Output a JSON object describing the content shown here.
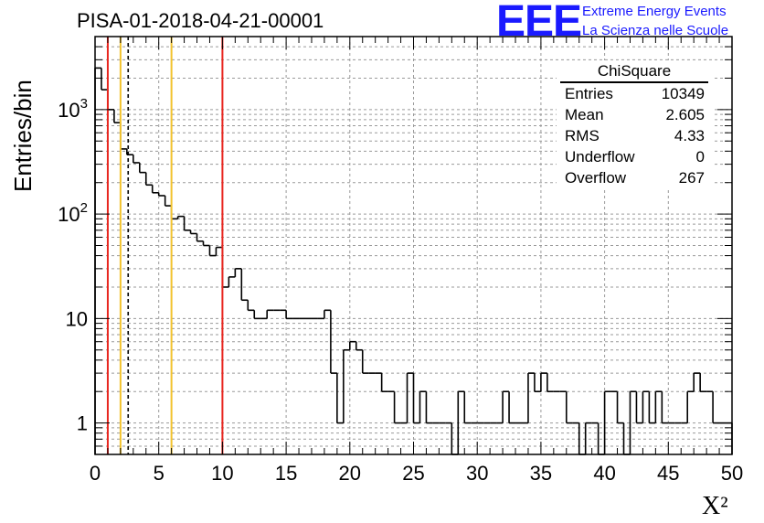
{
  "title": "PISA-01-2018-04-21-00001",
  "logo": {
    "mark": "EEE",
    "line1": "Extreme Energy Events",
    "line2": "La Scienza nelle Scuole",
    "color": "#1a1aff"
  },
  "stats": {
    "title": "ChiSquare",
    "rows": [
      {
        "label": "Entries",
        "value": "10349"
      },
      {
        "label": "Mean",
        "value": "2.605"
      },
      {
        "label": "RMS",
        "value": "4.33"
      },
      {
        "label": "Underflow",
        "value": "0"
      },
      {
        "label": "Overflow",
        "value": "267"
      }
    ]
  },
  "chart_data": {
    "type": "histogram",
    "ylabel": "Entries/bin",
    "xlabel": "X²",
    "xlim": [
      0,
      50
    ],
    "ylim": [
      0.5,
      5000
    ],
    "y_scale": "log",
    "grid": true,
    "bin_width": 0.5,
    "x_ticks": [
      "0",
      "5",
      "10",
      "15",
      "20",
      "25",
      "30",
      "35",
      "40",
      "45",
      "50"
    ],
    "y_ticks": [
      {
        "value": 1,
        "base": "1",
        "exp": ""
      },
      {
        "value": 10,
        "base": "10",
        "exp": ""
      },
      {
        "value": 100,
        "base": "10",
        "exp": "2"
      },
      {
        "value": 1000,
        "base": "10",
        "exp": "3"
      }
    ],
    "bin_values": [
      2500,
      1550,
      1000,
      750,
      420,
      370,
      310,
      250,
      190,
      160,
      150,
      120,
      90,
      95,
      70,
      65,
      55,
      50,
      40,
      48,
      20,
      25,
      30,
      15,
      12,
      10,
      10,
      12,
      12,
      12,
      10,
      10,
      10,
      10,
      10,
      10,
      12,
      3,
      1,
      5,
      6,
      5,
      3,
      3,
      3,
      2,
      2,
      1,
      1,
      3,
      1,
      2,
      1,
      1,
      1,
      1,
      0,
      2,
      1,
      1,
      1,
      1,
      1,
      1,
      2,
      1,
      1,
      1,
      3,
      2,
      3,
      2,
      2,
      2,
      1,
      1,
      0,
      1,
      1,
      0,
      2,
      2,
      1,
      0,
      2,
      1,
      2,
      1,
      2,
      1,
      1,
      1,
      1,
      2,
      3,
      2,
      2,
      1,
      1,
      1
    ],
    "vertical_lines": [
      {
        "x": 1,
        "color": "#e8261f",
        "style": "solid"
      },
      {
        "x": 2,
        "color": "#f2c22d",
        "style": "solid"
      },
      {
        "x": 2.6,
        "color": "#000000",
        "style": "dashed"
      },
      {
        "x": 6,
        "color": "#f2c22d",
        "style": "solid"
      },
      {
        "x": 10,
        "color": "#e8261f",
        "style": "solid"
      }
    ]
  }
}
